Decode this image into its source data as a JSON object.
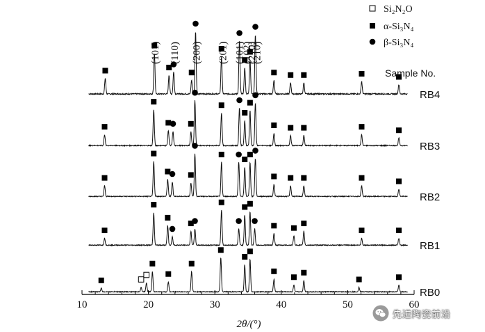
{
  "chart_data": {
    "type": "line",
    "xlabel": "2θ/(°)",
    "xlim": [
      10,
      60
    ],
    "xticks": [
      10,
      20,
      30,
      40,
      50,
      60
    ],
    "legend": {
      "placement": "top-right",
      "entries": [
        {
          "marker": "open-square",
          "label": "Si₂N₂O"
        },
        {
          "marker": "filled-square",
          "label": "α-Si₃N₄"
        },
        {
          "marker": "filled-circle",
          "label": "β-Si₃N₄"
        }
      ]
    },
    "sample_title": "Sample No.",
    "hkl_labels": [
      {
        "text": "(101)",
        "x": 21.0
      },
      {
        "text": "(110)",
        "x": 23.9
      },
      {
        "text": "(200)",
        "x": 27.2
      },
      {
        "text": "(201)",
        "x": 31.2
      },
      {
        "text": "(101)",
        "x": 33.7
      },
      {
        "text": "(102)",
        "x": 34.8
      },
      {
        "text": "(210)",
        "x": 35.5
      },
      {
        "text": "(210)",
        "x": 36.3
      }
    ],
    "series": [
      {
        "name": "RB4",
        "peaks": [
          {
            "x": 13.5,
            "h": 0.25,
            "m": "sq"
          },
          {
            "x": 20.9,
            "h": 0.65,
            "m": "sq"
          },
          {
            "x": 23.1,
            "h": 0.3,
            "m": "sq"
          },
          {
            "x": 23.8,
            "h": 0.35,
            "m": "ci"
          },
          {
            "x": 26.5,
            "h": 0.22,
            "m": "sq"
          },
          {
            "x": 27.1,
            "h": 1.0,
            "m": "ci"
          },
          {
            "x": 31.0,
            "h": 0.6,
            "m": "sq"
          },
          {
            "x": 33.7,
            "h": 0.85,
            "m": "ci"
          },
          {
            "x": 34.5,
            "h": 0.42,
            "m": "sq"
          },
          {
            "x": 35.3,
            "h": 0.55,
            "m": "sq"
          },
          {
            "x": 36.1,
            "h": 0.95,
            "m": "ci"
          },
          {
            "x": 38.9,
            "h": 0.22,
            "m": "sq"
          },
          {
            "x": 41.4,
            "h": 0.18,
            "m": "sq"
          },
          {
            "x": 43.4,
            "h": 0.18,
            "m": "sq"
          },
          {
            "x": 52.1,
            "h": 0.2,
            "m": "sq"
          },
          {
            "x": 57.7,
            "h": 0.15,
            "m": "sq"
          }
        ]
      },
      {
        "name": "RB3",
        "peaks": [
          {
            "x": 13.4,
            "h": 0.22,
            "m": "sq"
          },
          {
            "x": 20.8,
            "h": 0.72,
            "m": "sq"
          },
          {
            "x": 23.0,
            "h": 0.3,
            "m": "sq"
          },
          {
            "x": 23.7,
            "h": 0.28,
            "m": "ci"
          },
          {
            "x": 26.4,
            "h": 0.28,
            "m": "sq"
          },
          {
            "x": 27.0,
            "h": 0.9,
            "m": "ci"
          },
          {
            "x": 31.0,
            "h": 0.65,
            "m": "sq"
          },
          {
            "x": 33.7,
            "h": 0.75,
            "m": "ci"
          },
          {
            "x": 34.5,
            "h": 0.5,
            "m": "sq"
          },
          {
            "x": 35.3,
            "h": 0.7,
            "m": "sq"
          },
          {
            "x": 36.1,
            "h": 0.85,
            "m": "ci"
          },
          {
            "x": 38.9,
            "h": 0.25,
            "m": "sq"
          },
          {
            "x": 41.4,
            "h": 0.2,
            "m": "sq"
          },
          {
            "x": 43.4,
            "h": 0.2,
            "m": "sq"
          },
          {
            "x": 52.1,
            "h": 0.22,
            "m": "sq"
          },
          {
            "x": 57.7,
            "h": 0.15,
            "m": "sq"
          }
        ]
      },
      {
        "name": "RB2",
        "peaks": [
          {
            "x": 13.4,
            "h": 0.22,
            "m": "sq"
          },
          {
            "x": 20.8,
            "h": 0.72,
            "m": "sq"
          },
          {
            "x": 22.9,
            "h": 0.35,
            "m": "sq"
          },
          {
            "x": 23.6,
            "h": 0.3,
            "m": "ci"
          },
          {
            "x": 26.4,
            "h": 0.28,
            "m": "sq"
          },
          {
            "x": 27.0,
            "h": 0.88,
            "m": "ci"
          },
          {
            "x": 31.0,
            "h": 0.7,
            "m": "sq"
          },
          {
            "x": 33.6,
            "h": 0.7,
            "m": "ci"
          },
          {
            "x": 34.5,
            "h": 0.6,
            "m": "sq"
          },
          {
            "x": 35.3,
            "h": 0.7,
            "m": "sq"
          },
          {
            "x": 36.1,
            "h": 0.78,
            "m": "ci"
          },
          {
            "x": 38.9,
            "h": 0.25,
            "m": "sq"
          },
          {
            "x": 41.4,
            "h": 0.22,
            "m": "sq"
          },
          {
            "x": 43.4,
            "h": 0.22,
            "m": "sq"
          },
          {
            "x": 52.1,
            "h": 0.22,
            "m": "sq"
          },
          {
            "x": 57.7,
            "h": 0.15,
            "m": "sq"
          }
        ]
      },
      {
        "name": "RB1",
        "peaks": [
          {
            "x": 13.4,
            "h": 0.15,
            "m": "sq"
          },
          {
            "x": 20.8,
            "h": 0.7,
            "m": "sq"
          },
          {
            "x": 22.9,
            "h": 0.42,
            "m": "sq"
          },
          {
            "x": 23.6,
            "h": 0.18,
            "m": "ci"
          },
          {
            "x": 26.4,
            "h": 0.3,
            "m": "sq"
          },
          {
            "x": 27.0,
            "h": 0.35,
            "m": "ci"
          },
          {
            "x": 31.0,
            "h": 0.75,
            "m": "sq"
          },
          {
            "x": 33.6,
            "h": 0.35,
            "m": "ci"
          },
          {
            "x": 34.5,
            "h": 0.65,
            "m": "sq"
          },
          {
            "x": 35.3,
            "h": 0.72,
            "m": "sq"
          },
          {
            "x": 36.0,
            "h": 0.35,
            "m": "ci"
          },
          {
            "x": 38.9,
            "h": 0.25,
            "m": "sq"
          },
          {
            "x": 41.9,
            "h": 0.2,
            "m": "sq"
          },
          {
            "x": 43.4,
            "h": 0.3,
            "m": "sq"
          },
          {
            "x": 52.1,
            "h": 0.15,
            "m": "sq"
          },
          {
            "x": 57.7,
            "h": 0.15,
            "m": "sq"
          }
        ]
      },
      {
        "name": "RB0",
        "peaks": [
          {
            "x": 12.9,
            "h": 0.08,
            "m": "sq"
          },
          {
            "x": 18.9,
            "h": 0.1,
            "m": "os"
          },
          {
            "x": 19.7,
            "h": 0.2,
            "m": "os"
          },
          {
            "x": 20.6,
            "h": 0.45,
            "m": "sq"
          },
          {
            "x": 23.0,
            "h": 0.22,
            "m": "sq"
          },
          {
            "x": 26.5,
            "h": 0.45,
            "m": "sq"
          },
          {
            "x": 30.9,
            "h": 0.75,
            "m": "sq"
          },
          {
            "x": 34.5,
            "h": 0.6,
            "m": "sq"
          },
          {
            "x": 35.3,
            "h": 0.72,
            "m": "sq"
          },
          {
            "x": 38.9,
            "h": 0.28,
            "m": "sq"
          },
          {
            "x": 41.9,
            "h": 0.15,
            "m": "sq"
          },
          {
            "x": 43.4,
            "h": 0.25,
            "m": "sq"
          },
          {
            "x": 51.7,
            "h": 0.1,
            "m": "sq"
          },
          {
            "x": 57.7,
            "h": 0.15,
            "m": "sq"
          }
        ]
      }
    ]
  },
  "watermark": {
    "text": "先进陶瓷前沿",
    "icon": "wechat-logo-icon"
  }
}
